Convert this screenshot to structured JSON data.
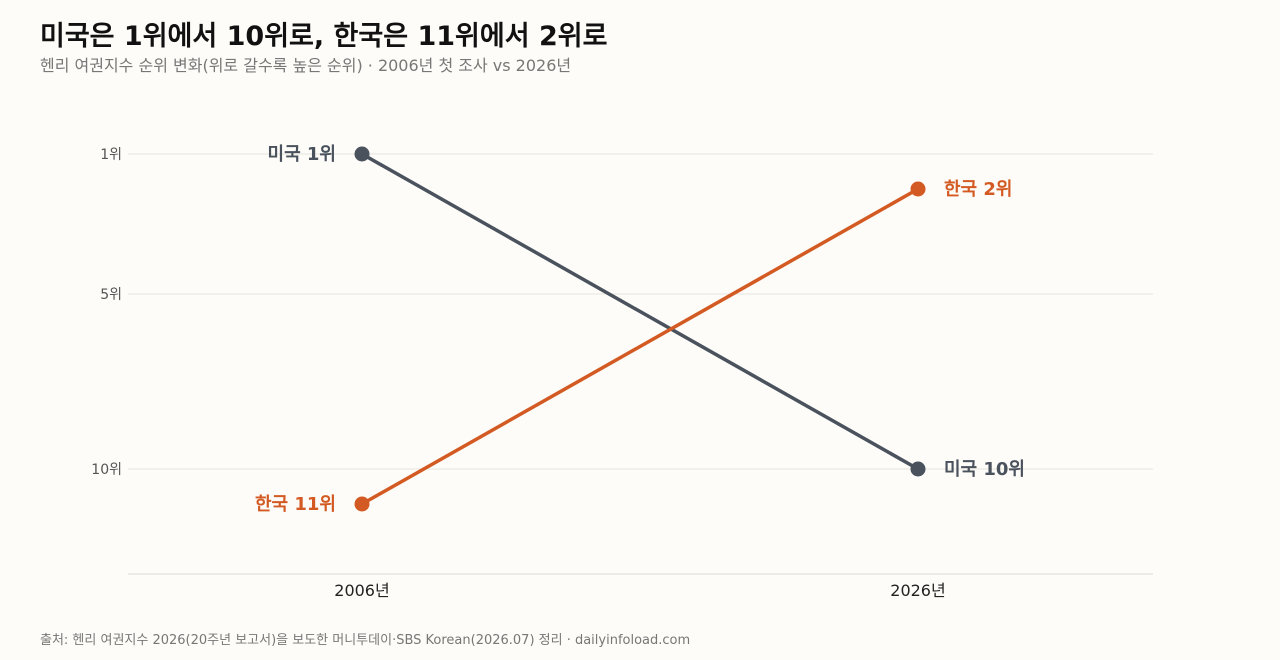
{
  "title": "미국은 1위에서 10위로, 한국은 11위에서 2위로",
  "subtitle": "헨리 여권지수 순위 변화(위로 갈수록 높은 순위) · 2006년 첫 조사 vs 2026년",
  "source": "출처: 헨리 여권지수 2026(20주년 보고서)을 보도한 머니투데이·SBS Korean(2026.07) 정리 · dailyinfoload.com",
  "chart_data": {
    "type": "line",
    "title": "미국은 1위에서 10위로, 한국은 11위에서 2위로",
    "subtitle": "헨리 여권지수 순위 변화(위로 갈수록 높은 순위) · 2006년 첫 조사 vs 2026년",
    "x": [
      "2006년",
      "2026년"
    ],
    "y_ticks": [
      {
        "value": 1,
        "label": "1위"
      },
      {
        "value": 5,
        "label": "5위"
      },
      {
        "value": 10,
        "label": "10위"
      }
    ],
    "y_range": [
      1,
      13
    ],
    "y_inverted": true,
    "grid": true,
    "series": [
      {
        "name": "미국",
        "values": [
          1,
          10
        ],
        "color": "#4a525d",
        "labels": [
          "미국 1위",
          "미국 10위"
        ]
      },
      {
        "name": "한국",
        "values": [
          11,
          2
        ],
        "color": "#d35a22",
        "labels": [
          "한국 11위",
          "한국 2위"
        ]
      }
    ]
  }
}
